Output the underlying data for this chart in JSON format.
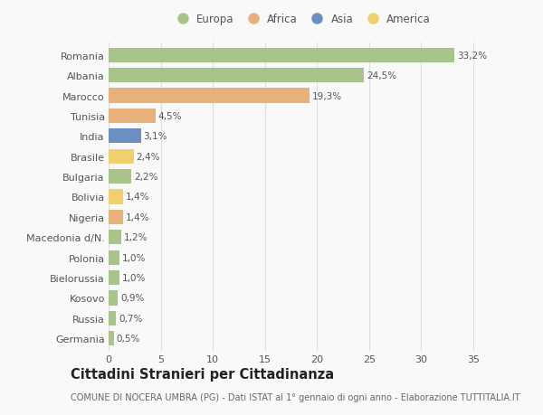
{
  "countries": [
    "Romania",
    "Albania",
    "Marocco",
    "Tunisia",
    "India",
    "Brasile",
    "Bulgaria",
    "Bolivia",
    "Nigeria",
    "Macedonia d/N.",
    "Polonia",
    "Bielorussia",
    "Kosovo",
    "Russia",
    "Germania"
  ],
  "values": [
    33.2,
    24.5,
    19.3,
    4.5,
    3.1,
    2.4,
    2.2,
    1.4,
    1.4,
    1.2,
    1.0,
    1.0,
    0.9,
    0.7,
    0.5
  ],
  "labels": [
    "33,2%",
    "24,5%",
    "19,3%",
    "4,5%",
    "3,1%",
    "2,4%",
    "2,2%",
    "1,4%",
    "1,4%",
    "1,2%",
    "1,0%",
    "1,0%",
    "0,9%",
    "0,7%",
    "0,5%"
  ],
  "continents": [
    "Europa",
    "Europa",
    "Africa",
    "Africa",
    "Asia",
    "America",
    "Europa",
    "America",
    "Africa",
    "Europa",
    "Europa",
    "Europa",
    "Europa",
    "Europa",
    "Europa"
  ],
  "colors": {
    "Europa": "#a8c48a",
    "Africa": "#e8b07a",
    "Asia": "#6b8fbf",
    "America": "#f0d06e"
  },
  "title": "Cittadini Stranieri per Cittadinanza",
  "subtitle": "COMUNE DI NOCERA UMBRA (PG) - Dati ISTAT al 1° gennaio di ogni anno - Elaborazione TUTTITALIA.IT",
  "xlim": [
    0,
    37
  ],
  "xticks": [
    0,
    5,
    10,
    15,
    20,
    25,
    30,
    35
  ],
  "background_color": "#f9f9f9",
  "grid_color": "#dddddd",
  "bar_height": 0.72,
  "title_fontsize": 10.5,
  "subtitle_fontsize": 7,
  "label_fontsize": 7.5,
  "tick_fontsize": 8,
  "legend_fontsize": 8.5
}
